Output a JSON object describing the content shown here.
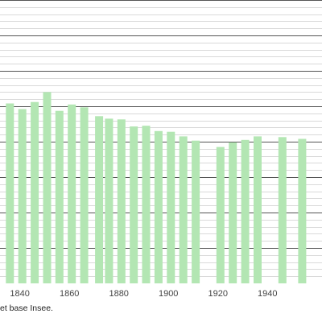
{
  "source_note": "et base Insee.",
  "colors": {
    "bar": "#b3e6b3",
    "major_grid": "#555555",
    "minor_grid": "#cccccc",
    "text": "#444444"
  },
  "chart_data": {
    "type": "bar",
    "title": "",
    "xlabel": "",
    "ylabel": "",
    "grid": true,
    "x_tick_labels": [
      "1840",
      "1860",
      "1880",
      "1900",
      "1920",
      "1940"
    ],
    "x_ticks": [
      1840,
      1860,
      1880,
      1900,
      1920,
      1940
    ],
    "xlim": [
      1832,
      1962
    ],
    "ylim": [
      0,
      800
    ],
    "major_grid_step": 100,
    "minor_grid_step": 20,
    "x": [
      1836,
      1841,
      1846,
      1851,
      1856,
      1861,
      1866,
      1872,
      1876,
      1881,
      1886,
      1891,
      1896,
      1901,
      1906,
      1911,
      1921,
      1926,
      1931,
      1936,
      1946,
      1954
    ],
    "values": [
      508,
      492,
      512,
      540,
      487,
      505,
      497,
      472,
      465,
      463,
      443,
      445,
      430,
      428,
      415,
      403,
      385,
      398,
      405,
      415,
      413,
      408
    ]
  }
}
